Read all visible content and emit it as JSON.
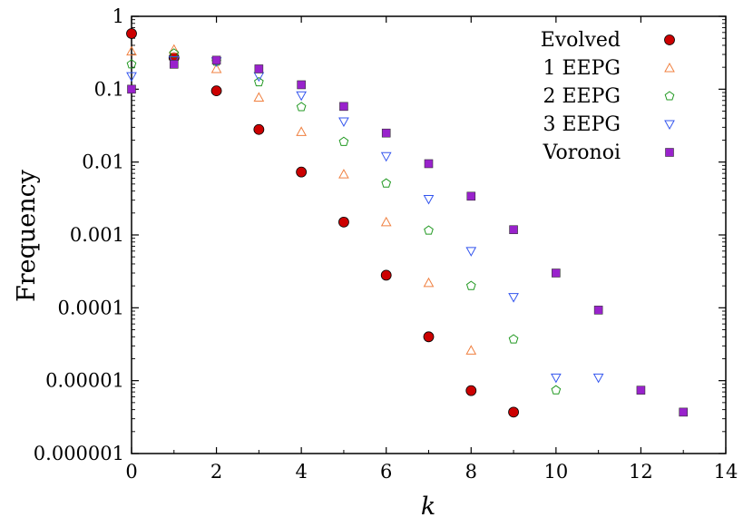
{
  "chart_data": {
    "type": "scatter",
    "xlabel": "k",
    "ylabel": "Frequency",
    "xlim": [
      0,
      14
    ],
    "ylim": [
      1e-06,
      1
    ],
    "yscale": "log",
    "grid": false,
    "legend_position": "top-right",
    "x_ticks": [
      "0",
      "2",
      "4",
      "6",
      "8",
      "10",
      "12",
      "14"
    ],
    "y_ticks": [
      "1",
      "0.1",
      "0.01",
      "0.001",
      "0.0001",
      "0.00001",
      "0.000001"
    ],
    "series": [
      {
        "name": "Evolved",
        "marker": "circle",
        "color": "#cc0000",
        "points": [
          [
            0,
            0.58
          ],
          [
            1,
            0.27
          ],
          [
            2,
            0.095
          ],
          [
            3,
            0.028
          ],
          [
            4,
            0.0073
          ],
          [
            5,
            0.0015
          ],
          [
            6,
            0.00028
          ],
          [
            7,
            4e-05
          ],
          [
            8,
            7.3e-06
          ],
          [
            9,
            3.7e-06
          ]
        ]
      },
      {
        "name": "1 EEPG",
        "marker": "triangle-up",
        "color": "#f08040",
        "points": [
          [
            0,
            0.33
          ],
          [
            1,
            0.35
          ],
          [
            2,
            0.19
          ],
          [
            3,
            0.077
          ],
          [
            4,
            0.026
          ],
          [
            5,
            0.0068
          ],
          [
            6,
            0.0015
          ],
          [
            7,
            0.00022
          ],
          [
            8,
            2.6e-05
          ]
        ]
      },
      {
        "name": "2 EEPG",
        "marker": "pentagon",
        "color": "#229922",
        "points": [
          [
            0,
            0.22
          ],
          [
            1,
            0.31
          ],
          [
            2,
            0.24
          ],
          [
            3,
            0.125
          ],
          [
            4,
            0.057
          ],
          [
            5,
            0.019
          ],
          [
            6,
            0.0051
          ],
          [
            7,
            0.00115
          ],
          [
            8,
            0.0002
          ],
          [
            9,
            3.7e-05
          ],
          [
            10,
            7.4e-06
          ]
        ]
      },
      {
        "name": "3 EEPG",
        "marker": "triangle-down",
        "color": "#3355ee",
        "points": [
          [
            0,
            0.15
          ],
          [
            1,
            0.25
          ],
          [
            2,
            0.24
          ],
          [
            3,
            0.15
          ],
          [
            4,
            0.082
          ],
          [
            5,
            0.036
          ],
          [
            6,
            0.012
          ],
          [
            7,
            0.0031
          ],
          [
            8,
            0.0006
          ],
          [
            9,
            0.00014
          ],
          [
            10,
            1.1e-05
          ],
          [
            11,
            1.1e-05
          ]
        ]
      },
      {
        "name": "Voronoi",
        "marker": "square",
        "color": "#9922cc",
        "points": [
          [
            0,
            0.1
          ],
          [
            1,
            0.22
          ],
          [
            2,
            0.25
          ],
          [
            3,
            0.19
          ],
          [
            4,
            0.115
          ],
          [
            5,
            0.058
          ],
          [
            6,
            0.025
          ],
          [
            7,
            0.0095
          ],
          [
            8,
            0.0034
          ],
          [
            9,
            0.00118
          ],
          [
            10,
            0.0003
          ],
          [
            11,
            9.3e-05
          ],
          [
            12,
            7.4e-06
          ],
          [
            13,
            3.7e-06
          ]
        ]
      }
    ]
  }
}
